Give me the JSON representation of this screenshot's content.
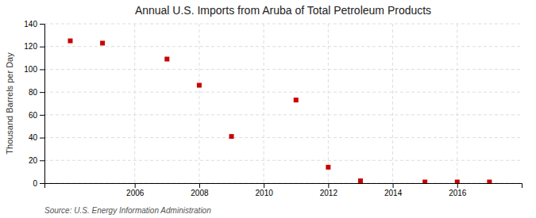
{
  "chart_data": {
    "type": "scatter",
    "title": "Annual U.S. Imports from Aruba of Total Petroleum Products",
    "ylabel": "Thousand Barrels per Day",
    "source": "Source: U.S. Energy Information Administration",
    "x": [
      2004,
      2005,
      2007,
      2008,
      2009,
      2011,
      2012,
      2013,
      2015,
      2016,
      2017
    ],
    "values": [
      125,
      123,
      109,
      86,
      41,
      73,
      14,
      2,
      1,
      1,
      1
    ],
    "xlim": [
      2003.2,
      2018.0
    ],
    "ylim": [
      0,
      140
    ],
    "xticks": [
      2006,
      2008,
      2010,
      2012,
      2014,
      2016
    ],
    "yticks": [
      0,
      20,
      40,
      60,
      80,
      100,
      120,
      140
    ],
    "color": "#cc0000",
    "marker": "square",
    "grid": true
  }
}
